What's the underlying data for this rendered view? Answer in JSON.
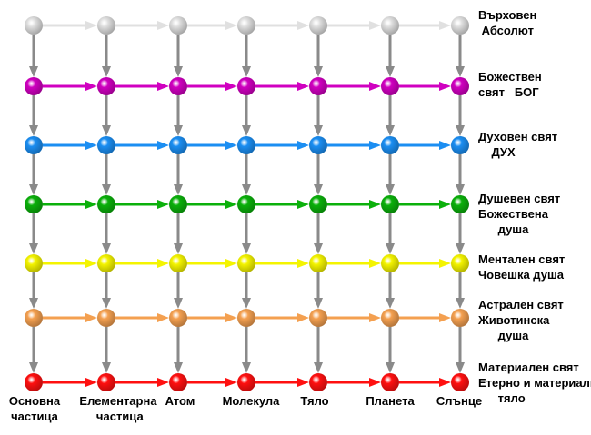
{
  "levels": [
    {
      "label": "Върховен\n Абсолют",
      "color": "#e0e0e0"
    },
    {
      "label": "Божествен\nсвят   БОГ",
      "color": "#d000c0"
    },
    {
      "label": "Духовен свят\n    ДУХ",
      "color": "#1b8ef2"
    },
    {
      "label": "Душевен свят\nБожествена\n      душа",
      "color": "#0bb00b"
    },
    {
      "label": "Ментален свят\nЧовешка душа",
      "color": "#f4f400"
    },
    {
      "label": "Астрален свят\nЖивотинска\n      душа",
      "color": "#f4a050"
    },
    {
      "label": "Материален свят\nЕтерно и материално\n      тяло",
      "color": "#ff1010"
    }
  ],
  "columns": [
    {
      "label": "Основна\nчастица"
    },
    {
      "label": "Елементарна\n частица"
    },
    {
      "label": "Атом"
    },
    {
      "label": "Молекула"
    },
    {
      "label": "Тяло"
    },
    {
      "label": "Планета"
    },
    {
      "label": "Слънце"
    }
  ],
  "vertical_arrow_color": "#8a8a8a"
}
